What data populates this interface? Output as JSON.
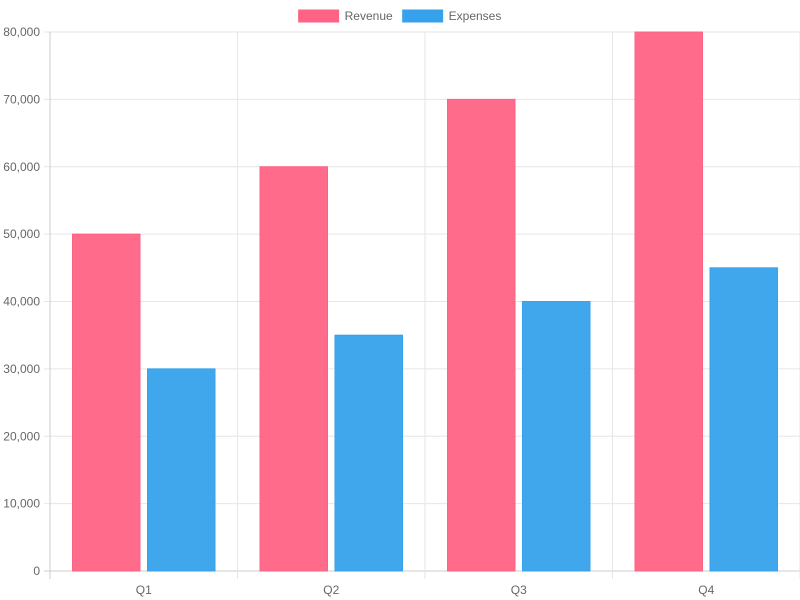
{
  "chart_data": {
    "type": "bar",
    "categories": [
      "Q1",
      "Q2",
      "Q3",
      "Q4"
    ],
    "series": [
      {
        "name": "Revenue",
        "values": [
          50000,
          60000,
          70000,
          80000
        ],
        "color": "#ff6384"
      },
      {
        "name": "Expenses",
        "values": [
          30000,
          35000,
          40000,
          45000
        ],
        "color": "#36a2eb"
      }
    ],
    "ylim": [
      0,
      80000
    ],
    "yticks": [
      "0",
      "10,000",
      "20,000",
      "30,000",
      "40,000",
      "50,000",
      "60,000",
      "70,000",
      "80,000"
    ],
    "ytick_values": [
      0,
      10000,
      20000,
      30000,
      40000,
      50000,
      60000,
      70000,
      80000
    ],
    "grid": true,
    "legend_position": "top-center"
  }
}
